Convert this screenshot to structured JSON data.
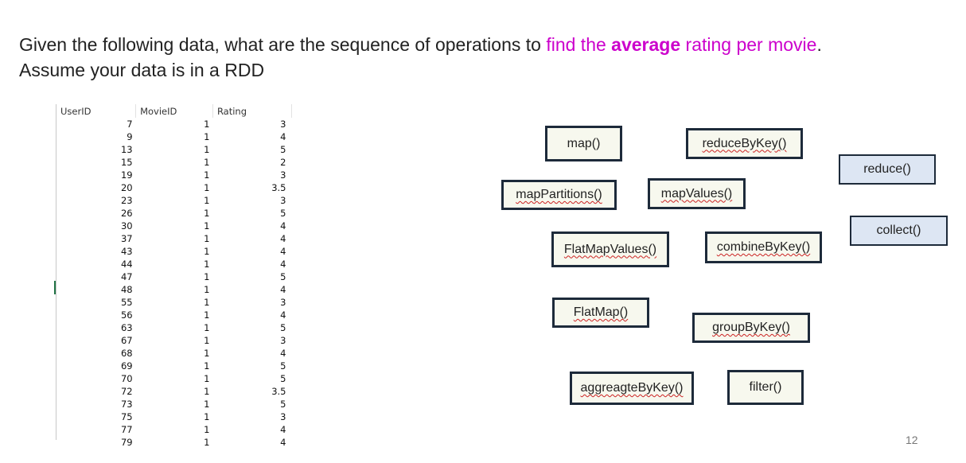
{
  "title": {
    "pre": "Given the following data, what are the sequence of operations to ",
    "hl_pre": "find the ",
    "hl_bold": "average",
    "hl_post": " rating per movie",
    "post": ".",
    "line2": "Assume your data is in a RDD"
  },
  "table": {
    "headers": [
      "UserID",
      "MovieID",
      "Rating"
    ],
    "rows": [
      [
        "7",
        "1",
        "3"
      ],
      [
        "9",
        "1",
        "4"
      ],
      [
        "13",
        "1",
        "5"
      ],
      [
        "15",
        "1",
        "2"
      ],
      [
        "19",
        "1",
        "3"
      ],
      [
        "20",
        "1",
        "3.5"
      ],
      [
        "23",
        "1",
        "3"
      ],
      [
        "26",
        "1",
        "5"
      ],
      [
        "30",
        "1",
        "4"
      ],
      [
        "37",
        "1",
        "4"
      ],
      [
        "43",
        "1",
        "4"
      ],
      [
        "44",
        "1",
        "4"
      ],
      [
        "47",
        "1",
        "5"
      ],
      [
        "48",
        "1",
        "4"
      ],
      [
        "55",
        "1",
        "3"
      ],
      [
        "56",
        "1",
        "4"
      ],
      [
        "63",
        "1",
        "5"
      ],
      [
        "67",
        "1",
        "3"
      ],
      [
        "68",
        "1",
        "4"
      ],
      [
        "69",
        "1",
        "5"
      ],
      [
        "70",
        "1",
        "5"
      ],
      [
        "72",
        "1",
        "3.5"
      ],
      [
        "73",
        "1",
        "5"
      ],
      [
        "75",
        "1",
        "3"
      ],
      [
        "77",
        "1",
        "4"
      ],
      [
        "79",
        "1",
        "4"
      ]
    ]
  },
  "operations": {
    "map": "map()",
    "reduceByKey": "reduceByKey()",
    "reduce": "reduce()",
    "mapPartitions": "mapPartitions()",
    "mapValues": "mapValues()",
    "collect": "collect()",
    "flatMapValues": "FlatMapValues()",
    "combineByKey": "combineByKey()",
    "flatMap": "FlatMap()",
    "groupByKey": "groupByKey()",
    "aggregateByKey": "aggreagteByKey()",
    "filter": "filter()"
  },
  "page_number": "12"
}
